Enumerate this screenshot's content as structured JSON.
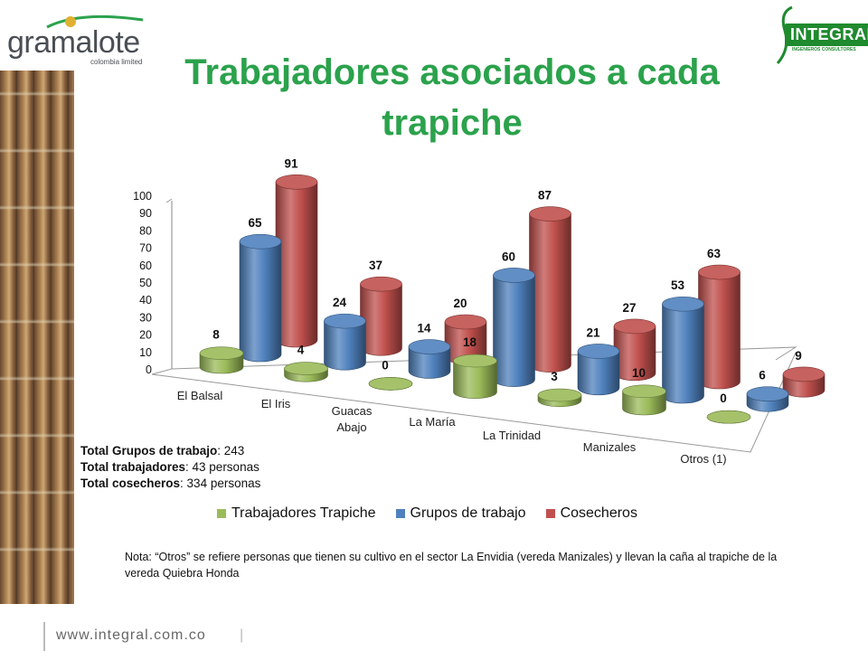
{
  "header": {
    "left_logo": "gramalote",
    "left_logo_sub": "colombia limited",
    "right_logo": "INTEGRAL",
    "right_logo_tag": "INGENIEROS CONSULTORES"
  },
  "title": "Trabajadores asociados a cada trapiche",
  "chart_data": {
    "type": "bar",
    "style": "3d-cylinder",
    "categories": [
      "El Balsal",
      "El Iris",
      "Guacas Abajo",
      "La María",
      "La Trinidad",
      "Manizales",
      "Otros (1)"
    ],
    "series": [
      {
        "name": "Trabajadores Trapiche",
        "values": [
          8,
          4,
          0,
          18,
          3,
          10,
          0
        ],
        "color": "#9bbb59"
      },
      {
        "name": "Grupos de trabajo",
        "values": [
          65,
          24,
          14,
          60,
          21,
          53,
          6
        ],
        "color": "#4f81bd"
      },
      {
        "name": "Cosecheros",
        "values": [
          91,
          37,
          20,
          87,
          27,
          63,
          9
        ],
        "color": "#c0504d"
      }
    ],
    "ylim": [
      0,
      100
    ],
    "yticks": [
      "0",
      "10",
      "20",
      "30",
      "40",
      "50",
      "60",
      "70",
      "80",
      "90",
      "100"
    ],
    "legend_position": "bottom",
    "data_labels": true,
    "grid": false
  },
  "totals": [
    {
      "label": "Total Grupos de trabajo",
      "value": ": 243"
    },
    {
      "label": "Total trabajadores",
      "value": ": 43 personas"
    },
    {
      "label": "Total cosecheros",
      "value": ": 334 personas"
    }
  ],
  "note": "Nota: “Otros” se refiere personas que tienen su cultivo en el sector La Envidia (vereda Manizales) y llevan la caña al trapiche de la vereda Quiebra Honda",
  "footer": {
    "url": "www.integral.com.co",
    "separator": "|"
  }
}
